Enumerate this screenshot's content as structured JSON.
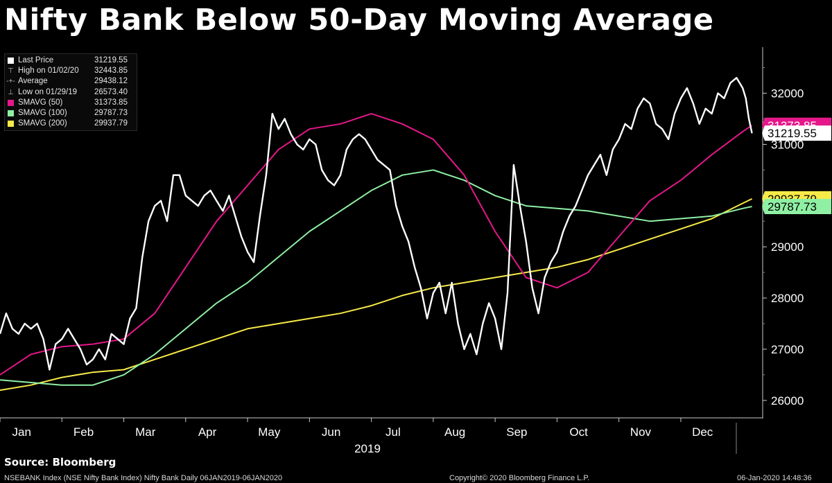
{
  "title": "Nifty Bank Below 50-Day Moving Average",
  "source": "Source: Bloomberg",
  "footer": {
    "description": "NSEBANK Index (NSE Nifty Bank Index) Nifty Bank  Daily 06JAN2019-06JAN2020",
    "copyright": "Copyright© 2020 Bloomberg Finance L.P.",
    "timestamp": "06-Jan-2020 14:48:36"
  },
  "legend": [
    {
      "label": "Last Price",
      "value": "31219.55",
      "swatch": "box",
      "color": "#ffffff"
    },
    {
      "label": "High on 01/02/20",
      "value": "32443.85",
      "swatch": "glyph",
      "glyph": "⊤",
      "color": "#bdbdbd"
    },
    {
      "label": "Average",
      "value": "29438.12",
      "swatch": "glyph",
      "glyph": "-+-",
      "color": "#bdbdbd"
    },
    {
      "label": "Low on 01/29/19",
      "value": "26573.40",
      "swatch": "glyph",
      "glyph": "⊥",
      "color": "#bdbdbd"
    },
    {
      "label": "SMAVG (50)",
      "value": "31373.85",
      "swatch": "box",
      "color": "#e5178a"
    },
    {
      "label": "SMAVG (100)",
      "value": "29787.73",
      "swatch": "box",
      "color": "#8ff0a4"
    },
    {
      "label": "SMAVG (200)",
      "value": "29937.79",
      "swatch": "box",
      "color": "#f7ea48"
    }
  ],
  "chart_data": {
    "type": "line",
    "title": "Nifty Bank Below 50-Day Moving Average",
    "xlabel": "2019",
    "ylabel": "",
    "ylim": [
      25700,
      32900
    ],
    "xlim": [
      0,
      12.3
    ],
    "grid": false,
    "legend_position": "top-left",
    "y_ticks": [
      26000,
      27000,
      28000,
      29000,
      30000,
      31000,
      32000
    ],
    "x_ticks": [
      "Jan",
      "Feb",
      "Mar",
      "Apr",
      "May",
      "Jun",
      "Jul",
      "Aug",
      "Sep",
      "Oct",
      "Nov",
      "Dec"
    ],
    "year_label": "2019",
    "series": [
      {
        "name": "Last Price",
        "color": "#ffffff",
        "x": [
          0,
          0.1,
          0.2,
          0.3,
          0.4,
          0.5,
          0.6,
          0.7,
          0.8,
          0.9,
          1.0,
          1.1,
          1.2,
          1.3,
          1.4,
          1.5,
          1.6,
          1.7,
          1.8,
          1.9,
          2.0,
          2.1,
          2.2,
          2.3,
          2.4,
          2.5,
          2.6,
          2.7,
          2.8,
          2.9,
          3.0,
          3.1,
          3.2,
          3.3,
          3.4,
          3.5,
          3.6,
          3.7,
          3.8,
          3.9,
          4.0,
          4.1,
          4.2,
          4.3,
          4.4,
          4.5,
          4.6,
          4.7,
          4.8,
          4.9,
          5.0,
          5.1,
          5.2,
          5.3,
          5.4,
          5.5,
          5.6,
          5.7,
          5.8,
          5.9,
          6.0,
          6.1,
          6.2,
          6.3,
          6.4,
          6.5,
          6.6,
          6.7,
          6.8,
          6.9,
          7.0,
          7.1,
          7.2,
          7.3,
          7.4,
          7.5,
          7.6,
          7.7,
          7.8,
          7.9,
          8.0,
          8.1,
          8.2,
          8.3,
          8.4,
          8.5,
          8.6,
          8.7,
          8.8,
          8.9,
          9.0,
          9.1,
          9.2,
          9.3,
          9.4,
          9.5,
          9.6,
          9.7,
          9.8,
          9.9,
          10.0,
          10.1,
          10.2,
          10.3,
          10.4,
          10.5,
          10.6,
          10.7,
          10.8,
          10.9,
          11.0,
          11.1,
          11.2,
          11.3,
          11.4,
          11.5,
          11.6,
          11.7,
          11.8,
          11.9,
          12.0,
          12.05,
          12.1,
          12.15
        ],
        "values": [
          27300,
          27700,
          27400,
          27300,
          27500,
          27400,
          27500,
          27200,
          26600,
          27100,
          27200,
          27400,
          27200,
          27000,
          26700,
          26800,
          27000,
          26800,
          27300,
          27200,
          27100,
          27600,
          27800,
          28800,
          29500,
          29800,
          29900,
          29500,
          30400,
          30400,
          30000,
          29900,
          29800,
          30000,
          30100,
          29900,
          29700,
          30000,
          29600,
          29200,
          28900,
          28700,
          29600,
          30400,
          31600,
          31300,
          31500,
          31200,
          31000,
          30900,
          31100,
          31000,
          30500,
          30300,
          30200,
          30400,
          30900,
          31100,
          31200,
          31100,
          30900,
          30700,
          30600,
          30500,
          29800,
          29400,
          29100,
          28600,
          28200,
          27600,
          28100,
          28300,
          27700,
          28300,
          27500,
          27000,
          27300,
          26900,
          27500,
          27900,
          27600,
          27000,
          28100,
          30600,
          29800,
          29100,
          28200,
          27700,
          28400,
          28700,
          28900,
          29300,
          29600,
          29800,
          30100,
          30400,
          30600,
          30800,
          30400,
          30900,
          31100,
          31400,
          31300,
          31700,
          31900,
          31800,
          31400,
          31300,
          31100,
          31600,
          31900,
          32100,
          31800,
          31400,
          31700,
          31600,
          32000,
          31900,
          32200,
          32300,
          32100,
          31900,
          31500,
          31219.55
        ]
      },
      {
        "name": "SMAVG (50)",
        "color": "#e5178a",
        "x": [
          0,
          0.5,
          1.0,
          1.5,
          2.0,
          2.5,
          3.0,
          3.5,
          4.0,
          4.5,
          5.0,
          5.5,
          6.0,
          6.5,
          7.0,
          7.5,
          8.0,
          8.5,
          9.0,
          9.5,
          10.0,
          10.5,
          11.0,
          11.5,
          12.0,
          12.15
        ],
        "values": [
          26500,
          26900,
          27050,
          27100,
          27200,
          27700,
          28600,
          29500,
          30200,
          30900,
          31300,
          31400,
          31600,
          31400,
          31100,
          30400,
          29300,
          28400,
          28200,
          28500,
          29200,
          29900,
          30300,
          30800,
          31250,
          31373.85
        ]
      },
      {
        "name": "SMAVG (100)",
        "color": "#8ff0a4",
        "x": [
          0,
          0.5,
          1.0,
          1.5,
          2.0,
          2.5,
          3.0,
          3.5,
          4.0,
          4.5,
          5.0,
          5.5,
          6.0,
          6.5,
          7.0,
          7.5,
          8.0,
          8.5,
          9.0,
          9.5,
          10.0,
          10.5,
          11.0,
          11.5,
          12.0,
          12.15
        ],
        "values": [
          26400,
          26350,
          26300,
          26300,
          26500,
          26900,
          27400,
          27900,
          28300,
          28800,
          29300,
          29700,
          30100,
          30400,
          30500,
          30300,
          30000,
          29800,
          29750,
          29700,
          29600,
          29500,
          29550,
          29600,
          29750,
          29787.73
        ]
      },
      {
        "name": "SMAVG (200)",
        "color": "#f7ea48",
        "x": [
          0,
          0.5,
          1.0,
          1.5,
          2.0,
          2.5,
          3.0,
          3.5,
          4.0,
          4.5,
          5.0,
          5.5,
          6.0,
          6.5,
          7.0,
          7.5,
          8.0,
          8.5,
          9.0,
          9.5,
          10.0,
          10.5,
          11.0,
          11.5,
          12.0,
          12.15
        ],
        "values": [
          26200,
          26300,
          26450,
          26550,
          26600,
          26800,
          27000,
          27200,
          27400,
          27500,
          27600,
          27700,
          27850,
          28050,
          28200,
          28300,
          28400,
          28500,
          28600,
          28750,
          28950,
          29150,
          29350,
          29550,
          29850,
          29937.79
        ]
      }
    ],
    "end_labels": [
      {
        "name": "SMAVG (50)",
        "text": "31373.85",
        "value": 31373.85,
        "bg": "#e5178a",
        "fg": "#ffffff"
      },
      {
        "name": "Last Price",
        "text": "31219.55",
        "value": 31219.55,
        "bg": "#ffffff",
        "fg": "#000000"
      },
      {
        "name": "SMAVG (200)",
        "text": "29937.79",
        "value": 29937.79,
        "bg": "#f7ea48",
        "fg": "#000000"
      },
      {
        "name": "SMAVG (100)",
        "text": "29787.73",
        "value": 29787.73,
        "bg": "#8ff0a4",
        "fg": "#000000"
      }
    ]
  }
}
